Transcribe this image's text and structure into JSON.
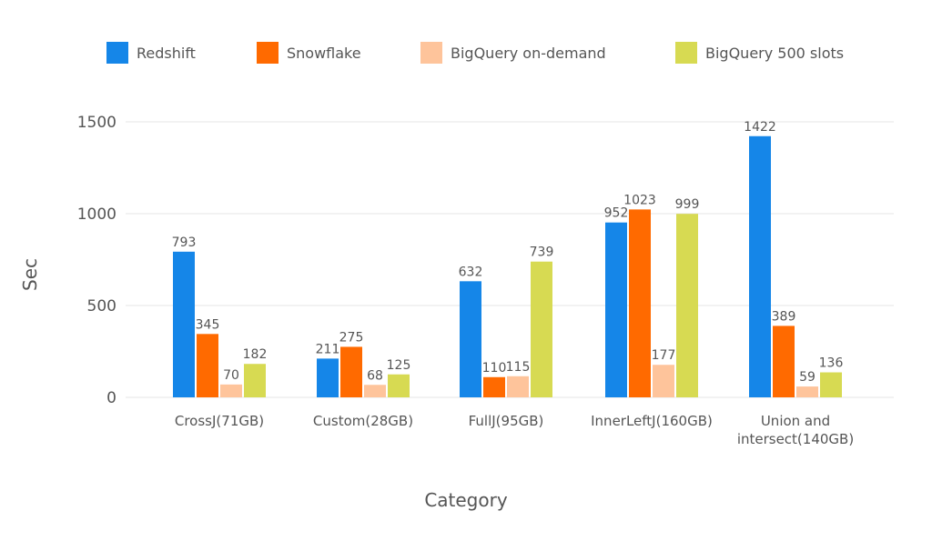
{
  "chart_data": {
    "type": "bar",
    "title": "",
    "xlabel": "Category",
    "ylabel": "Sec",
    "ylim": [
      0,
      1500
    ],
    "yticks": [
      "0",
      "500",
      "1000",
      "1500"
    ],
    "categories": [
      [
        "CrossJ(71GB)"
      ],
      [
        "Custom(28GB)"
      ],
      [
        "FullJ(95GB)"
      ],
      [
        "InnerLeftJ(160GB)"
      ],
      [
        "Union and",
        "intersect(140GB)"
      ]
    ],
    "series": [
      {
        "name": "Redshift",
        "color": "#1586e8",
        "values": [
          793,
          211,
          632,
          952,
          1422
        ]
      },
      {
        "name": "Snowflake",
        "color": "#ff6a00",
        "values": [
          345,
          275,
          110,
          1023,
          389
        ]
      },
      {
        "name": "BigQuery on-demand",
        "color": "#fec49b",
        "values": [
          70,
          68,
          115,
          177,
          59
        ]
      },
      {
        "name": "BigQuery 500 slots",
        "color": "#d7da52",
        "values": [
          182,
          125,
          739,
          999,
          136
        ]
      }
    ],
    "legend_position": "top"
  }
}
